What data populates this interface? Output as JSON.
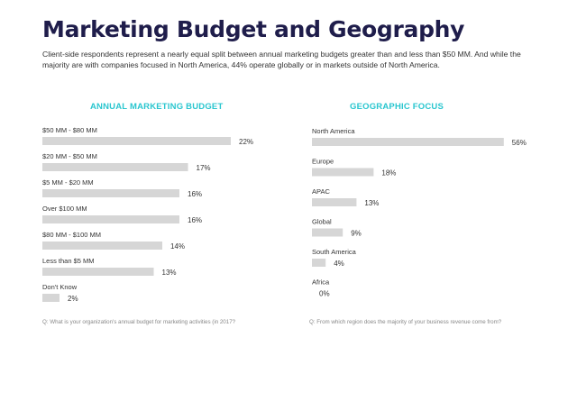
{
  "page": {
    "title": "Marketing Budget and Geography",
    "subtitle": "Client-side respondents represent a nearly equal split between annual marketing budgets greater than and less than $50 MM. And while the majority are with companies focused in North America, 44% operate globally or in markets outside of North America."
  },
  "chart_data": [
    {
      "type": "bar",
      "orientation": "horizontal",
      "title": "ANNUAL MARKETING BUDGET",
      "categories": [
        "$50 MM - $80 MM",
        "$20 MM - $50 MM",
        "$5 MM - $20 MM",
        "Over $100 MM",
        "$80 MM - $100 MM",
        "Less than $5 MM",
        "Don't Know"
      ],
      "values": [
        22,
        17,
        16,
        16,
        14,
        13,
        2
      ],
      "value_labels": [
        "22%",
        "17%",
        "16%",
        "16%",
        "14%",
        "13%",
        "2%"
      ],
      "unit": "%",
      "note": "Q: What is your organization's annual budget for marketing activities (in 2017?"
    },
    {
      "type": "bar",
      "orientation": "horizontal",
      "title": "GEOGRAPHIC FOCUS",
      "categories": [
        "North America",
        "Europe",
        "APAC",
        "Global",
        "South America",
        "Africa"
      ],
      "values": [
        56,
        18,
        13,
        9,
        4,
        0
      ],
      "value_labels": [
        "56%",
        "18%",
        "13%",
        "9%",
        "4%",
        "0%"
      ],
      "unit": "%",
      "note": "Q: From which region does the majority of your business revenue come from?"
    }
  ],
  "colors": {
    "title": "#1f1d4b",
    "accent": "#29c6cf",
    "bar": "#d6d6d6"
  }
}
